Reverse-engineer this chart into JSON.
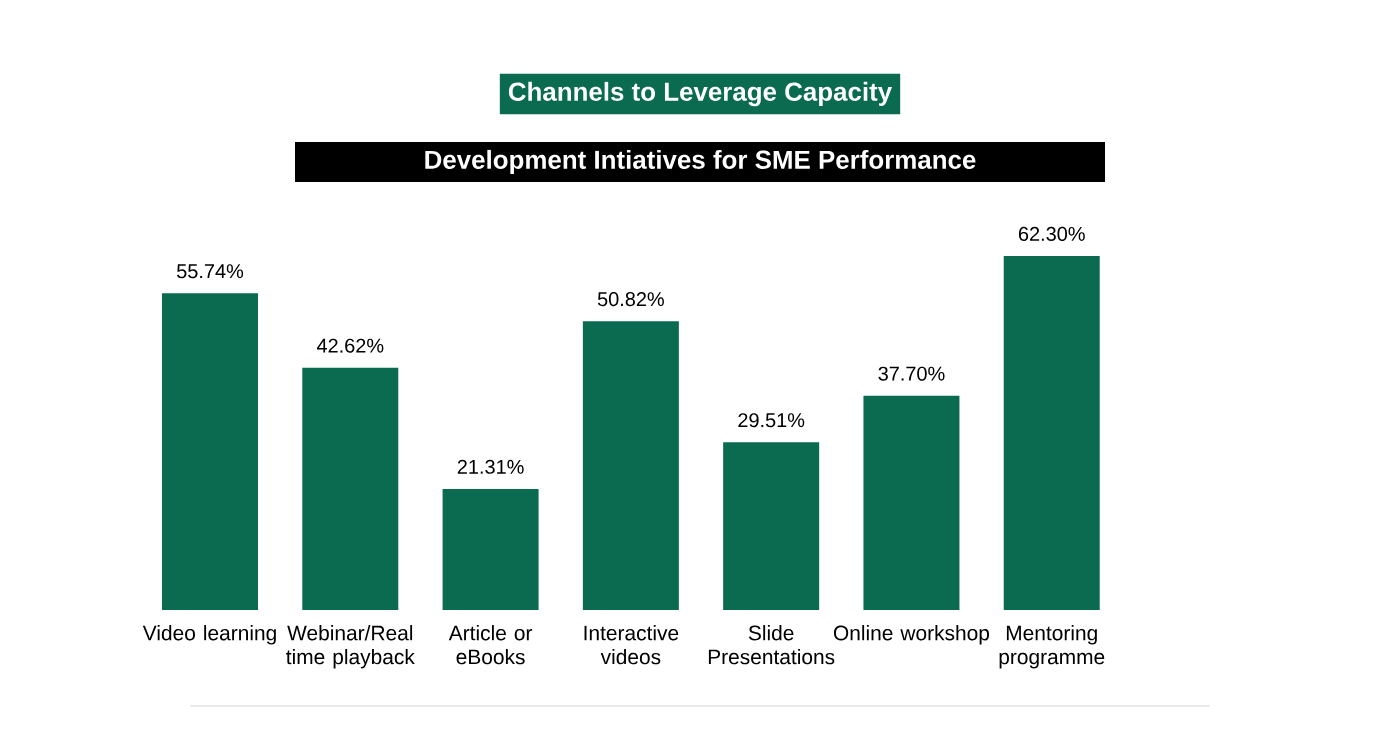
{
  "chart_data": {
    "type": "bar",
    "title": "Channels to Leverage Capacity",
    "subtitle": "Development Intiatives for SME Performance",
    "categories": [
      "Video learning",
      "Webinar/Real time playback",
      "Article or eBooks",
      "Interactive videos",
      "Slide Presentations",
      "Online workshop",
      "Mentoring programme"
    ],
    "values": [
      55.74,
      42.62,
      21.31,
      50.82,
      29.51,
      37.7,
      62.3
    ],
    "value_labels": [
      "55.74%",
      "42.62%",
      "21.31%",
      "50.82%",
      "29.51%",
      "37.70%",
      "62.30%"
    ],
    "color": "#0b6b50"
  }
}
